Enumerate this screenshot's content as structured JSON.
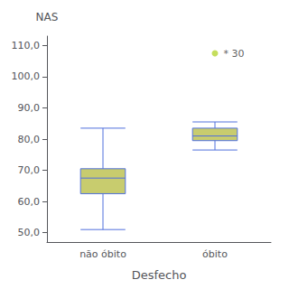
{
  "chart_data": {
    "type": "boxplot",
    "xlabel": "Desfecho",
    "ylabel": "NAS",
    "categories": [
      "não óbito",
      "óbito"
    ],
    "boxes": [
      {
        "low": 51.0,
        "q1": 62.5,
        "median": 67.5,
        "q3": 70.5,
        "high": 83.5,
        "outliers": []
      },
      {
        "low": 76.5,
        "q1": 79.5,
        "median": 81.0,
        "q3": 83.5,
        "high": 85.5,
        "outliers": [
          107.5
        ]
      }
    ],
    "outlier_label": "* 30",
    "color": "#c8cc6e",
    "ylim": [
      47,
      113
    ],
    "yticks": [
      {
        "value": 50.0,
        "label": "50,0"
      },
      {
        "value": 60.0,
        "label": "60,0"
      },
      {
        "value": 70.0,
        "label": "70,0"
      },
      {
        "value": 80.0,
        "label": "80,0"
      },
      {
        "value": 90.0,
        "label": "90,0"
      },
      {
        "value": 100.0,
        "label": "100,0"
      },
      {
        "value": 110.0,
        "label": "110,0"
      }
    ],
    "grid": false
  }
}
